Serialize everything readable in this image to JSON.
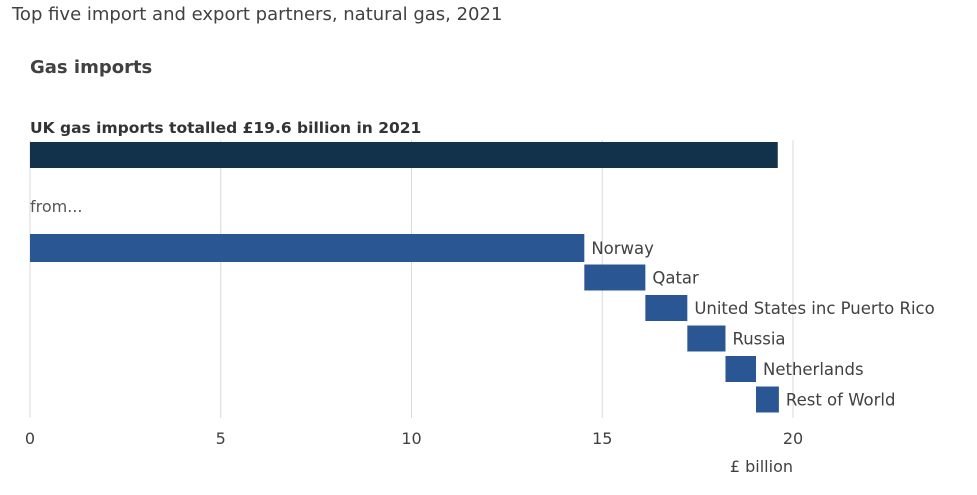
{
  "page_heading": "Top five import and export partners, natural gas, 2021",
  "panel_title": "Gas imports",
  "chart_data": {
    "type": "bar",
    "subtype": "waterfall",
    "total": {
      "label": "UK gas imports totalled £19.6 billion in 2021",
      "value": 19.6
    },
    "breakdown_label": "from...",
    "categories": [
      "Norway",
      "Qatar",
      "United States inc Puerto Rico",
      "Russia",
      "Netherlands",
      "Rest of World"
    ],
    "values": [
      14.53,
      1.6,
      1.1,
      1.0,
      0.8,
      0.6
    ],
    "x_ticks": [
      "0",
      "5",
      "10",
      "15",
      "20"
    ],
    "xlim": [
      0,
      20
    ],
    "xlabel": "£ billion",
    "grid": true,
    "colors": {
      "total_bar": "#12314a",
      "partner_bar": "#2a5794",
      "gridline": "#d9d9d9",
      "axis_text": "#414042"
    }
  }
}
